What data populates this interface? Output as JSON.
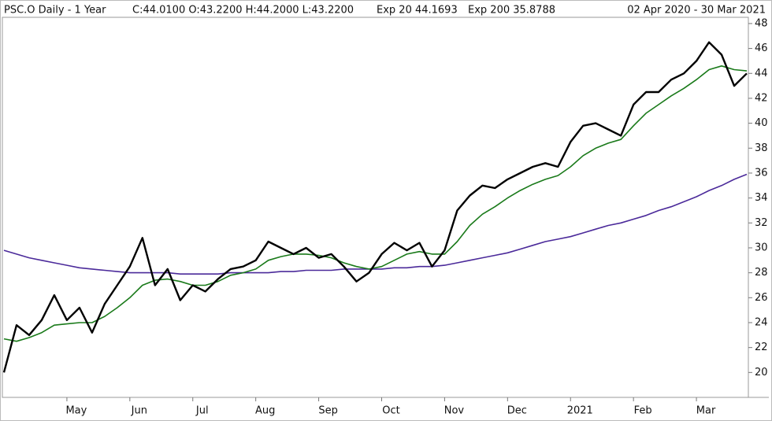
{
  "chart_data": {
    "type": "line",
    "title": "PSC.O Daily  -  1 Year",
    "date_range": "02 Apr 2020  -  30 Mar 2021",
    "categories": [
      null,
      null,
      null,
      null,
      null,
      "May",
      null,
      null,
      null,
      null,
      "Jun",
      null,
      null,
      null,
      null,
      "Jul",
      null,
      null,
      null,
      null,
      "Aug",
      null,
      null,
      null,
      null,
      "Sep",
      null,
      null,
      null,
      null,
      "Oct",
      null,
      null,
      null,
      null,
      "Nov",
      null,
      null,
      null,
      null,
      "Dec",
      null,
      null,
      null,
      null,
      "2021",
      null,
      null,
      null,
      null,
      "Feb",
      null,
      null,
      null,
      null,
      "Mar",
      null,
      null,
      null,
      null
    ],
    "series": [
      {
        "name": "C:44.0100 O:43.2200 H:44.2000 L:43.2200",
        "color": "#000000",
        "values": [
          20.0,
          23.8,
          23.0,
          24.2,
          26.2,
          24.2,
          25.2,
          23.2,
          25.5,
          27.0,
          28.5,
          30.8,
          27.0,
          28.3,
          25.8,
          27.0,
          26.5,
          27.5,
          28.3,
          28.5,
          29.0,
          30.5,
          30.0,
          29.5,
          30.0,
          29.2,
          29.5,
          28.5,
          27.3,
          28.0,
          29.5,
          30.4,
          29.8,
          30.4,
          28.5,
          29.8,
          33.0,
          34.2,
          35.0,
          34.8,
          35.5,
          36.0,
          36.5,
          36.8,
          36.5,
          38.5,
          39.8,
          40.0,
          39.5,
          39.0,
          41.5,
          42.5,
          42.5,
          43.5,
          44.0,
          45.0,
          46.5,
          45.5,
          43.0,
          44.0
        ]
      },
      {
        "name": "Exp 20 44.1693",
        "color": "#1a7a1a",
        "values": [
          22.7,
          22.5,
          22.8,
          23.2,
          23.8,
          23.9,
          24.0,
          24.0,
          24.5,
          25.2,
          26.0,
          27.0,
          27.4,
          27.5,
          27.3,
          27.0,
          27.0,
          27.3,
          27.8,
          28.0,
          28.3,
          29.0,
          29.3,
          29.5,
          29.5,
          29.4,
          29.2,
          28.8,
          28.5,
          28.3,
          28.5,
          29.0,
          29.5,
          29.7,
          29.5,
          29.5,
          30.5,
          31.8,
          32.7,
          33.3,
          34.0,
          34.6,
          35.1,
          35.5,
          35.8,
          36.5,
          37.4,
          38.0,
          38.4,
          38.7,
          39.8,
          40.8,
          41.5,
          42.2,
          42.8,
          43.5,
          44.3,
          44.6,
          44.3,
          44.2
        ]
      },
      {
        "name": "Exp 200 35.8788",
        "color": "#4b2a9a",
        "values": [
          29.8,
          29.5,
          29.2,
          29.0,
          28.8,
          28.6,
          28.4,
          28.3,
          28.2,
          28.1,
          28.0,
          28.0,
          28.0,
          28.0,
          27.9,
          27.9,
          27.9,
          27.9,
          28.0,
          28.0,
          28.0,
          28.0,
          28.1,
          28.1,
          28.2,
          28.2,
          28.2,
          28.3,
          28.3,
          28.3,
          28.3,
          28.4,
          28.4,
          28.5,
          28.5,
          28.6,
          28.8,
          29.0,
          29.2,
          29.4,
          29.6,
          29.9,
          30.2,
          30.5,
          30.7,
          30.9,
          31.2,
          31.5,
          31.8,
          32.0,
          32.3,
          32.6,
          33.0,
          33.3,
          33.7,
          34.1,
          34.6,
          35.0,
          35.5,
          35.9
        ]
      }
    ],
    "ylim": [
      18,
      48.5
    ],
    "yticks": [
      20,
      22,
      24,
      26,
      28,
      30,
      32,
      34,
      36,
      38,
      40,
      42,
      44,
      46,
      48
    ],
    "grid": false
  }
}
